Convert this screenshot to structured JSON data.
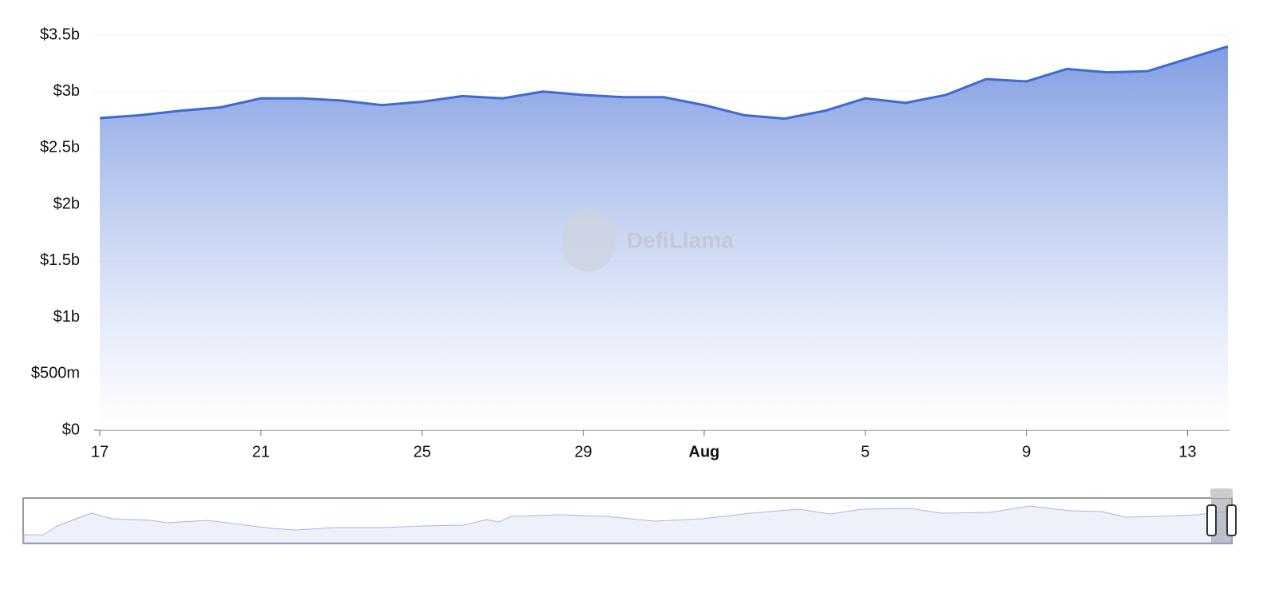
{
  "chart_data": {
    "type": "area",
    "watermark": "DefiLlama",
    "categories": [
      "17",
      null,
      null,
      null,
      "21",
      null,
      null,
      null,
      "25",
      null,
      null,
      null,
      "29",
      null,
      null,
      "Aug",
      null,
      null,
      null,
      "5",
      null,
      null,
      null,
      "9",
      null,
      null,
      null,
      "13",
      null
    ],
    "series": [
      {
        "color": "#3d6ad6",
        "values": [
          2.765,
          2.79,
          2.83,
          2.86,
          2.94,
          2.94,
          2.92,
          2.88,
          2.91,
          2.96,
          2.94,
          3.0,
          2.97,
          2.95,
          2.95,
          2.88,
          2.79,
          2.76,
          2.83,
          2.94,
          2.9,
          2.97,
          3.11,
          3.09,
          3.2,
          3.17,
          3.18,
          3.29,
          3.4
        ]
      }
    ],
    "ylim": [
      0,
      3.5
    ],
    "yticks": [
      {
        "value": 0,
        "label": "$0"
      },
      {
        "value": 0.5,
        "label": "$500m"
      },
      {
        "value": 1,
        "label": "$1b"
      },
      {
        "value": 1.5,
        "label": "$1.5b"
      },
      {
        "value": 2,
        "label": "$2b"
      },
      {
        "value": 2.5,
        "label": "$2.5b"
      },
      {
        "value": 3,
        "label": "$3b"
      },
      {
        "value": 3.5,
        "label": "$3.5b"
      }
    ],
    "grid": true
  }
}
